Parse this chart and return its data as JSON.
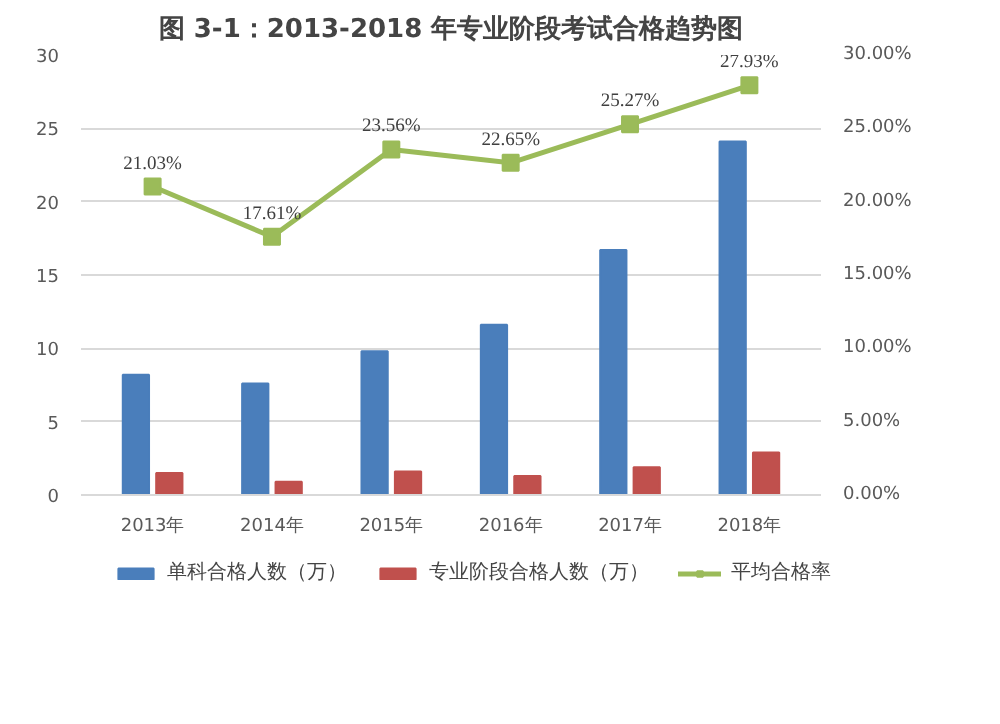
{
  "chart_data": {
    "type": "bar",
    "title": "图 3-1：2013-2018 年专业阶段考试合格趋势图",
    "categories": [
      "2013年",
      "2014年",
      "2015年",
      "2016年",
      "2017年",
      "2018年"
    ],
    "series": [
      {
        "name": "单科合格人数（万）",
        "color": "#4a7ebb",
        "values": [
          8.2,
          7.6,
          9.8,
          11.6,
          16.7,
          24.1
        ]
      },
      {
        "name": "专业阶段合格人数（万）",
        "color": "#c0504d",
        "values": [
          1.5,
          0.9,
          1.6,
          1.3,
          1.9,
          2.9
        ]
      },
      {
        "name": "平均合格率",
        "type": "line",
        "axis": "y2",
        "color": "#9bbb59",
        "marker": "square",
        "values": [
          21.03,
          17.61,
          23.56,
          22.65,
          25.27,
          27.93
        ],
        "value_labels": [
          "21.03%",
          "17.61%",
          "23.56%",
          "22.65%",
          "25.27%",
          "27.93%"
        ]
      }
    ],
    "ylim": [
      0,
      30
    ],
    "yticks": [
      0,
      5,
      10,
      15,
      20,
      25,
      30
    ],
    "y2lim": [
      0,
      30
    ],
    "y2ticks": [
      {
        "value": 0,
        "label": "0.00%"
      },
      {
        "value": 5,
        "label": "5.00%"
      },
      {
        "value": 10,
        "label": "10.00%"
      },
      {
        "value": 15,
        "label": "15.00%"
      },
      {
        "value": 20,
        "label": "20.00%"
      },
      {
        "value": 25,
        "label": "25.00%"
      },
      {
        "value": 30,
        "label": "30.00%"
      }
    ],
    "grid": "y",
    "legend": "bottom"
  }
}
